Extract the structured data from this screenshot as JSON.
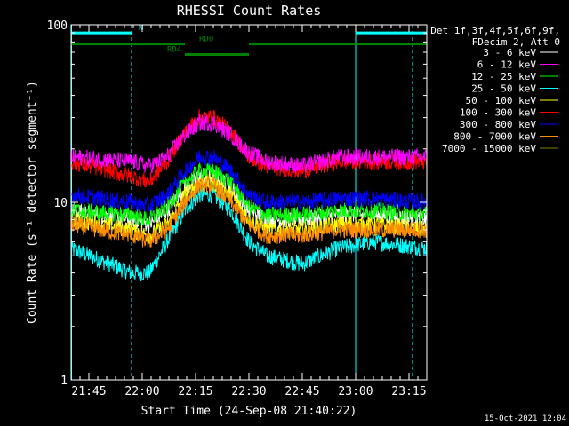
{
  "chart_data": {
    "type": "line",
    "title": "RHESSI Count Rates",
    "xlabel": "Start Time (24-Sep-08 21:40:22)",
    "ylabel": "Count Rate (s⁻¹ detector segment⁻¹)",
    "yscale": "log",
    "ylim": [
      1,
      100
    ],
    "xlim_minutes_after_21_40": [
      0,
      100
    ],
    "x_ticks": [
      {
        "label": "21:45",
        "minute": 5
      },
      {
        "label": "22:00",
        "minute": 20
      },
      {
        "label": "22:15",
        "minute": 35
      },
      {
        "label": "22:30",
        "minute": 50
      },
      {
        "label": "22:45",
        "minute": 65
      },
      {
        "label": "23:00",
        "minute": 80
      },
      {
        "label": "23:15",
        "minute": 95
      }
    ],
    "y_ticks": [
      {
        "label": "1",
        "value": 1
      },
      {
        "label": "10",
        "value": 10
      },
      {
        "label": "100",
        "value": 100
      }
    ],
    "legend_header": [
      "Det 1f,3f,4f,5f,6f,9f,",
      "FDecim 2, Att 0"
    ],
    "legend_position": "right-outside",
    "grid": false,
    "series": [
      {
        "name": "3 - 6 keV",
        "color": "#ffffff",
        "points": [
          [
            0,
            9
          ],
          [
            17,
            8
          ],
          [
            22,
            7.5
          ],
          [
            27,
            9
          ],
          [
            32,
            12
          ],
          [
            36,
            14
          ],
          [
            40,
            14
          ],
          [
            45,
            12
          ],
          [
            50,
            9
          ],
          [
            55,
            8
          ],
          [
            65,
            8
          ],
          [
            75,
            8.5
          ],
          [
            85,
            8.5
          ],
          [
            100,
            8
          ]
        ]
      },
      {
        "name": "6 - 12 keV",
        "color": "#ff00ff",
        "points": [
          [
            0,
            18
          ],
          [
            17,
            17
          ],
          [
            22,
            16
          ],
          [
            27,
            18
          ],
          [
            32,
            24
          ],
          [
            36,
            28
          ],
          [
            40,
            28
          ],
          [
            45,
            24
          ],
          [
            50,
            19
          ],
          [
            55,
            17
          ],
          [
            65,
            16
          ],
          [
            75,
            18
          ],
          [
            85,
            18
          ],
          [
            100,
            18
          ]
        ]
      },
      {
        "name": "12 - 25 keV",
        "color": "#00ff00",
        "points": [
          [
            0,
            9
          ],
          [
            17,
            8.5
          ],
          [
            22,
            8
          ],
          [
            27,
            9.5
          ],
          [
            32,
            13
          ],
          [
            36,
            15
          ],
          [
            40,
            15
          ],
          [
            45,
            13
          ],
          [
            50,
            9.5
          ],
          [
            55,
            8.5
          ],
          [
            65,
            8.5
          ],
          [
            75,
            9
          ],
          [
            85,
            9
          ],
          [
            100,
            8.5
          ]
        ]
      },
      {
        "name": "25 - 50 keV",
        "color": "#00ffff",
        "points": [
          [
            0,
            5.5
          ],
          [
            17,
            4
          ],
          [
            22,
            4
          ],
          [
            27,
            6
          ],
          [
            32,
            9
          ],
          [
            36,
            11
          ],
          [
            40,
            11
          ],
          [
            45,
            9
          ],
          [
            50,
            6
          ],
          [
            55,
            5
          ],
          [
            65,
            4.5
          ],
          [
            75,
            5.5
          ],
          [
            85,
            6
          ],
          [
            100,
            5.5
          ]
        ]
      },
      {
        "name": "50 - 100 keV",
        "color": "#ffff00",
        "points": [
          [
            0,
            8
          ],
          [
            17,
            7
          ],
          [
            22,
            6.5
          ],
          [
            27,
            7.5
          ],
          [
            32,
            11
          ],
          [
            36,
            13
          ],
          [
            40,
            13
          ],
          [
            45,
            11
          ],
          [
            50,
            8
          ],
          [
            55,
            7
          ],
          [
            65,
            7
          ],
          [
            75,
            7.5
          ],
          [
            85,
            7.5
          ],
          [
            100,
            7
          ]
        ]
      },
      {
        "name": "100 - 300 keV",
        "color": "#ff0000",
        "points": [
          [
            0,
            17
          ],
          [
            17,
            14
          ],
          [
            22,
            13
          ],
          [
            27,
            17
          ],
          [
            32,
            25
          ],
          [
            36,
            30
          ],
          [
            40,
            30
          ],
          [
            45,
            25
          ],
          [
            50,
            18
          ],
          [
            55,
            16
          ],
          [
            65,
            15
          ],
          [
            75,
            17
          ],
          [
            85,
            17
          ],
          [
            100,
            17
          ]
        ]
      },
      {
        "name": "300 - 800 keV",
        "color": "#0000ff",
        "points": [
          [
            0,
            11
          ],
          [
            17,
            10
          ],
          [
            22,
            9.5
          ],
          [
            27,
            11
          ],
          [
            32,
            15
          ],
          [
            36,
            18
          ],
          [
            40,
            18
          ],
          [
            45,
            15
          ],
          [
            50,
            11
          ],
          [
            55,
            10
          ],
          [
            65,
            10
          ],
          [
            75,
            10.5
          ],
          [
            85,
            10.5
          ],
          [
            100,
            10
          ]
        ]
      },
      {
        "name": "800 - 7000 keV",
        "color": "#ff8c00",
        "points": [
          [
            0,
            7.5
          ],
          [
            17,
            6.5
          ],
          [
            22,
            6
          ],
          [
            27,
            7
          ],
          [
            32,
            10
          ],
          [
            36,
            12.5
          ],
          [
            40,
            12.5
          ],
          [
            45,
            10
          ],
          [
            50,
            7.5
          ],
          [
            55,
            6.5
          ],
          [
            65,
            6.5
          ],
          [
            75,
            7
          ],
          [
            85,
            7
          ],
          [
            100,
            7
          ]
        ]
      },
      {
        "name": "7000 - 15000 keV",
        "color": "#808000",
        "points": []
      }
    ],
    "vertical_markers": [
      {
        "minute": 0,
        "style": "solid",
        "color": "#00ffff"
      },
      {
        "minute": 17,
        "style": "dashed",
        "color": "#00ffff"
      },
      {
        "minute": 80,
        "style": "solid",
        "color": "#00ffff"
      },
      {
        "minute": 96,
        "style": "dashed",
        "color": "#00ffff"
      }
    ],
    "state_bars": [
      {
        "label": "N",
        "color": "#00ffff",
        "level_value": 90,
        "segments": [
          [
            0,
            17
          ],
          [
            80,
            100
          ]
        ],
        "label_at_minute": 19
      },
      {
        "label": "RD0",
        "color": "#008000",
        "level_value": 78,
        "segments": [
          [
            0,
            32
          ],
          [
            50,
            100
          ]
        ],
        "label_at_minute": 36
      },
      {
        "label": "RD4",
        "color": "#008000",
        "level_value": 68,
        "segments": [
          [
            32,
            50
          ]
        ],
        "label_at_minute": 27
      }
    ],
    "footer_stamp": "15-Oct-2021 12:04"
  }
}
